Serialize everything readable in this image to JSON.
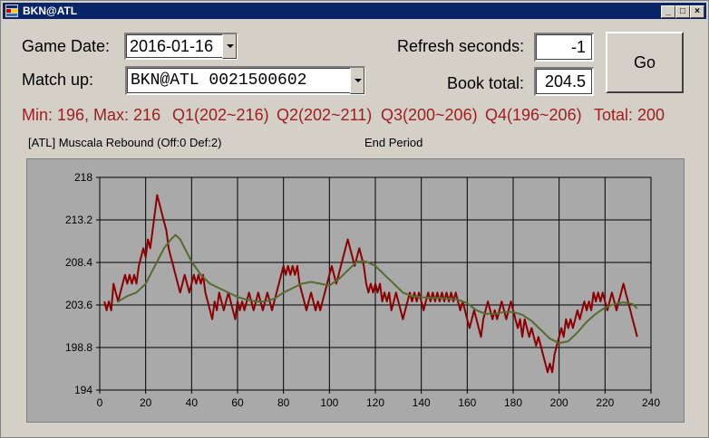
{
  "window": {
    "title": "BKN@ATL"
  },
  "form": {
    "game_date_label": "Game Date:",
    "game_date_value": "2016-01-16",
    "matchup_label": "Match up:",
    "matchup_value": "BKN@ATL 0021500602",
    "refresh_label": "Refresh seconds:",
    "refresh_value": "-1",
    "book_total_label": "Book total:",
    "book_total_value": "204.5",
    "go_label": "Go"
  },
  "stats": {
    "minmax": "Min: 196, Max: 216",
    "q1": "Q1(202~216)",
    "q2": "Q2(202~211)",
    "q3": "Q3(200~206)",
    "q4": "Q4(196~206)",
    "total": "Total: 200"
  },
  "info": {
    "last_play": "[ATL] Muscala Rebound (Off:0 Def:2)",
    "period_status": "End Period"
  },
  "colors": {
    "stats_text": "#a01e1e",
    "projection_line": "#8b0000",
    "moving_avg_line": "#556b2f",
    "chart_bg": "#a9a9a9"
  },
  "chart_data": {
    "type": "line",
    "xlim": [
      0,
      240
    ],
    "ylim": [
      194,
      218
    ],
    "x_ticks": [
      0,
      20,
      40,
      60,
      80,
      100,
      120,
      140,
      160,
      180,
      200,
      220,
      240
    ],
    "y_ticks": [
      194,
      198.8,
      203.6,
      208.4,
      213.2,
      218
    ],
    "x_tick_labels": [
      "0",
      "20",
      "40",
      "60",
      "80",
      "100",
      "120",
      "140",
      "160",
      "180",
      "200",
      "220",
      "240"
    ],
    "y_tick_labels": [
      "194",
      "198.8",
      "203.6",
      "208.4",
      "213.2",
      "218"
    ],
    "grid": true,
    "series": [
      {
        "color": "#8b0000",
        "points": [
          [
            2,
            204
          ],
          [
            3,
            203
          ],
          [
            4,
            204
          ],
          [
            5,
            203
          ],
          [
            6,
            206
          ],
          [
            7,
            205
          ],
          [
            8,
            204
          ],
          [
            9,
            205
          ],
          [
            10,
            206
          ],
          [
            11,
            207
          ],
          [
            12,
            206
          ],
          [
            13,
            207
          ],
          [
            14,
            206
          ],
          [
            15,
            207
          ],
          [
            16,
            206
          ],
          [
            17,
            208
          ],
          [
            18,
            209
          ],
          [
            19,
            210
          ],
          [
            20,
            209
          ],
          [
            21,
            211
          ],
          [
            22,
            210
          ],
          [
            23,
            212
          ],
          [
            24,
            214
          ],
          [
            25,
            216
          ],
          [
            26,
            215
          ],
          [
            27,
            214
          ],
          [
            28,
            213
          ],
          [
            29,
            212
          ],
          [
            30,
            210
          ],
          [
            31,
            209
          ],
          [
            32,
            208
          ],
          [
            33,
            207
          ],
          [
            34,
            206
          ],
          [
            35,
            205
          ],
          [
            36,
            206
          ],
          [
            37,
            207
          ],
          [
            38,
            206
          ],
          [
            39,
            205
          ],
          [
            40,
            206
          ],
          [
            41,
            207
          ],
          [
            42,
            206
          ],
          [
            43,
            207
          ],
          [
            44,
            206
          ],
          [
            45,
            207
          ],
          [
            46,
            205
          ],
          [
            47,
            204
          ],
          [
            48,
            203
          ],
          [
            49,
            202
          ],
          [
            50,
            204
          ],
          [
            51,
            203
          ],
          [
            52,
            205
          ],
          [
            53,
            204
          ],
          [
            54,
            203
          ],
          [
            55,
            204
          ],
          [
            56,
            205
          ],
          [
            57,
            204
          ],
          [
            58,
            203
          ],
          [
            59,
            202
          ],
          [
            60,
            204
          ],
          [
            61,
            203
          ],
          [
            62,
            204
          ],
          [
            63,
            203
          ],
          [
            64,
            204
          ],
          [
            65,
            205
          ],
          [
            66,
            204
          ],
          [
            67,
            203
          ],
          [
            68,
            204
          ],
          [
            69,
            205
          ],
          [
            70,
            204
          ],
          [
            71,
            203
          ],
          [
            72,
            204
          ],
          [
            73,
            205
          ],
          [
            74,
            204
          ],
          [
            75,
            203
          ],
          [
            76,
            204
          ],
          [
            77,
            205
          ],
          [
            78,
            206
          ],
          [
            79,
            207
          ],
          [
            80,
            208
          ],
          [
            81,
            207
          ],
          [
            82,
            208
          ],
          [
            83,
            207
          ],
          [
            84,
            208
          ],
          [
            85,
            207
          ],
          [
            86,
            208
          ],
          [
            87,
            206
          ],
          [
            88,
            205
          ],
          [
            89,
            204
          ],
          [
            90,
            203
          ],
          [
            91,
            204
          ],
          [
            92,
            205
          ],
          [
            93,
            204
          ],
          [
            94,
            203
          ],
          [
            95,
            204
          ],
          [
            96,
            203
          ],
          [
            97,
            204
          ],
          [
            98,
            205
          ],
          [
            99,
            206
          ],
          [
            100,
            207
          ],
          [
            101,
            208
          ],
          [
            102,
            207
          ],
          [
            103,
            206
          ],
          [
            104,
            207
          ],
          [
            105,
            208
          ],
          [
            106,
            209
          ],
          [
            107,
            210
          ],
          [
            108,
            211
          ],
          [
            109,
            210
          ],
          [
            110,
            209
          ],
          [
            111,
            208
          ],
          [
            112,
            209
          ],
          [
            113,
            210
          ],
          [
            114,
            209
          ],
          [
            115,
            208
          ],
          [
            116,
            206
          ],
          [
            117,
            205
          ],
          [
            118,
            206
          ],
          [
            119,
            205
          ],
          [
            120,
            206
          ],
          [
            121,
            205
          ],
          [
            122,
            206
          ],
          [
            123,
            204
          ],
          [
            124,
            205
          ],
          [
            125,
            204
          ],
          [
            126,
            205
          ],
          [
            127,
            203
          ],
          [
            128,
            204
          ],
          [
            129,
            205
          ],
          [
            130,
            204
          ],
          [
            131,
            203
          ],
          [
            132,
            202
          ],
          [
            133,
            203
          ],
          [
            134,
            204
          ],
          [
            135,
            205
          ],
          [
            136,
            204
          ],
          [
            137,
            205
          ],
          [
            138,
            204
          ],
          [
            139,
            205
          ],
          [
            140,
            204
          ],
          [
            141,
            203
          ],
          [
            142,
            204
          ],
          [
            143,
            205
          ],
          [
            144,
            204
          ],
          [
            145,
            205
          ],
          [
            146,
            204
          ],
          [
            147,
            205
          ],
          [
            148,
            204
          ],
          [
            149,
            205
          ],
          [
            150,
            204
          ],
          [
            151,
            205
          ],
          [
            152,
            204
          ],
          [
            153,
            205
          ],
          [
            154,
            204
          ],
          [
            155,
            205
          ],
          [
            156,
            204
          ],
          [
            157,
            203
          ],
          [
            158,
            204
          ],
          [
            159,
            203
          ],
          [
            160,
            202
          ],
          [
            161,
            201
          ],
          [
            162,
            202
          ],
          [
            163,
            203
          ],
          [
            164,
            202
          ],
          [
            165,
            201
          ],
          [
            166,
            200
          ],
          [
            167,
            202
          ],
          [
            168,
            203
          ],
          [
            169,
            204
          ],
          [
            170,
            203
          ],
          [
            171,
            202
          ],
          [
            172,
            203
          ],
          [
            173,
            202
          ],
          [
            174,
            203
          ],
          [
            175,
            204
          ],
          [
            176,
            203
          ],
          [
            177,
            202
          ],
          [
            178,
            203
          ],
          [
            179,
            204
          ],
          [
            180,
            203
          ],
          [
            181,
            202
          ],
          [
            182,
            201
          ],
          [
            183,
            202
          ],
          [
            184,
            200
          ],
          [
            185,
            202
          ],
          [
            186,
            201
          ],
          [
            187,
            200
          ],
          [
            188,
            201
          ],
          [
            189,
            200
          ],
          [
            190,
            199
          ],
          [
            191,
            200
          ],
          [
            192,
            199
          ],
          [
            193,
            198
          ],
          [
            194,
            197
          ],
          [
            195,
            196
          ],
          [
            196,
            197
          ],
          [
            197,
            196
          ],
          [
            198,
            198
          ],
          [
            199,
            199
          ],
          [
            200,
            200
          ],
          [
            201,
            201
          ],
          [
            202,
            200
          ],
          [
            203,
            202
          ],
          [
            204,
            201
          ],
          [
            205,
            202
          ],
          [
            206,
            201
          ],
          [
            207,
            202
          ],
          [
            208,
            203
          ],
          [
            209,
            202
          ],
          [
            210,
            203
          ],
          [
            211,
            204
          ],
          [
            212,
            203
          ],
          [
            213,
            204
          ],
          [
            214,
            203
          ],
          [
            215,
            205
          ],
          [
            216,
            204
          ],
          [
            217,
            205
          ],
          [
            218,
            204
          ],
          [
            219,
            205
          ],
          [
            220,
            204
          ],
          [
            221,
            203
          ],
          [
            222,
            204
          ],
          [
            223,
            205
          ],
          [
            224,
            204
          ],
          [
            225,
            203
          ],
          [
            226,
            204
          ],
          [
            227,
            205
          ],
          [
            228,
            206
          ],
          [
            229,
            205
          ],
          [
            230,
            204
          ],
          [
            231,
            203
          ],
          [
            232,
            202
          ],
          [
            233,
            201
          ],
          [
            234,
            200
          ]
        ]
      },
      {
        "color": "#556b2f",
        "points": [
          [
            8,
            204
          ],
          [
            12,
            204.6
          ],
          [
            16,
            205
          ],
          [
            20,
            206
          ],
          [
            24,
            208
          ],
          [
            28,
            210
          ],
          [
            31,
            211
          ],
          [
            33,
            211.5
          ],
          [
            35,
            211
          ],
          [
            37,
            210
          ],
          [
            40,
            208.5
          ],
          [
            44,
            207
          ],
          [
            48,
            206
          ],
          [
            52,
            205.5
          ],
          [
            56,
            205
          ],
          [
            60,
            204.5
          ],
          [
            64,
            204.2
          ],
          [
            68,
            204
          ],
          [
            72,
            204
          ],
          [
            76,
            204.3
          ],
          [
            80,
            205
          ],
          [
            84,
            205.5
          ],
          [
            88,
            206
          ],
          [
            92,
            206.2
          ],
          [
            96,
            206
          ],
          [
            100,
            205.8
          ],
          [
            104,
            206.5
          ],
          [
            108,
            207.5
          ],
          [
            112,
            208.5
          ],
          [
            116,
            208.5
          ],
          [
            120,
            208
          ],
          [
            124,
            207
          ],
          [
            128,
            206
          ],
          [
            132,
            205
          ],
          [
            136,
            204.6
          ],
          [
            140,
            204.5
          ],
          [
            144,
            204.4
          ],
          [
            148,
            204.4
          ],
          [
            152,
            204.3
          ],
          [
            156,
            204.2
          ],
          [
            160,
            203.8
          ],
          [
            164,
            203
          ],
          [
            168,
            202.6
          ],
          [
            172,
            202.6
          ],
          [
            176,
            202.8
          ],
          [
            180,
            202.8
          ],
          [
            184,
            202.5
          ],
          [
            188,
            201.8
          ],
          [
            192,
            200.8
          ],
          [
            196,
            199.8
          ],
          [
            200,
            199.3
          ],
          [
            204,
            199.5
          ],
          [
            208,
            200.5
          ],
          [
            212,
            201.7
          ],
          [
            216,
            202.6
          ],
          [
            220,
            203.3
          ],
          [
            224,
            203.7
          ],
          [
            228,
            203.9
          ],
          [
            232,
            203.7
          ],
          [
            234,
            203.2
          ]
        ]
      }
    ]
  }
}
